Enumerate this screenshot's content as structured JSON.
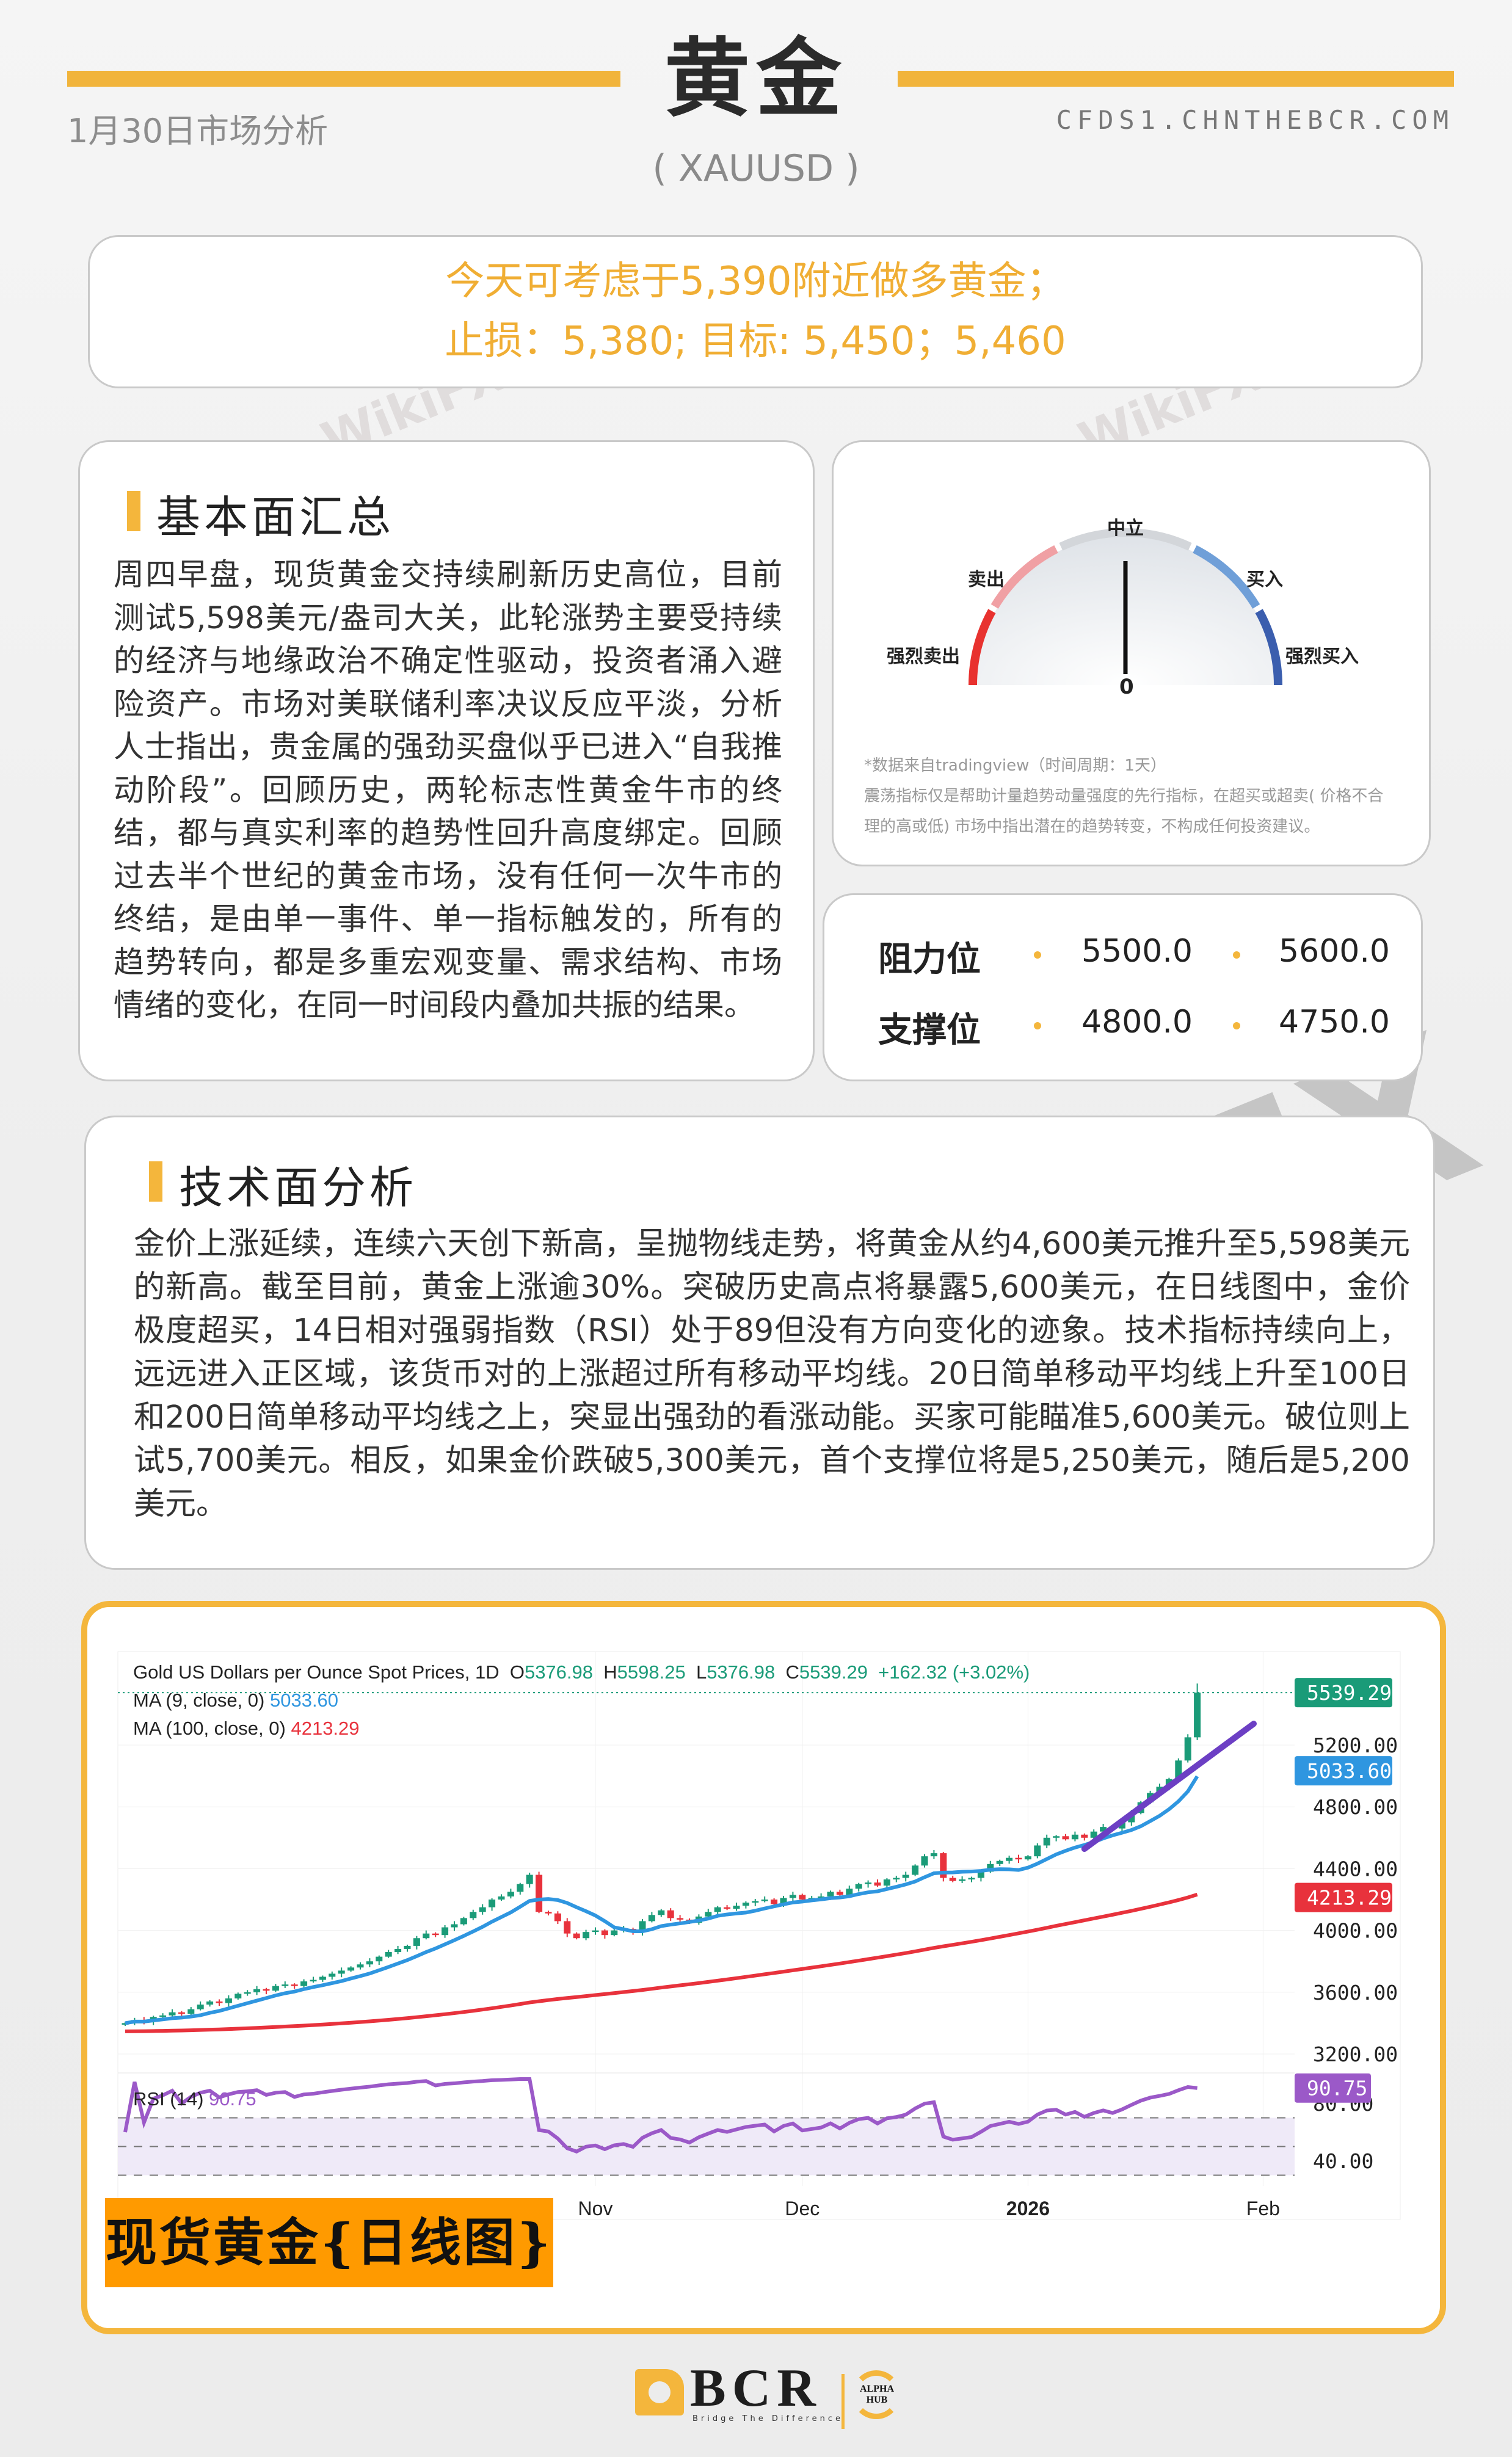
{
  "header": {
    "title": "黄金",
    "symbol": "( XAUUSD )",
    "date_label": "1月30日市场分析",
    "site": "CFDS1.CHNTHEBCR.COM",
    "accent_color": "#f1b43c"
  },
  "advice": {
    "line1": "今天可考虑于5,390附近做多黄金；",
    "line2": "止损：5,380;  目标: 5,450；5,460"
  },
  "fundamentals": {
    "heading": "基本面汇总",
    "body": "周四早盘，现货黄金交持续刷新历史高位，目前测试5,598美元/盎司大关，此轮涨势主要受持续的经济与地缘政治不确定性驱动，投资者涌入避险资产。市场对美联储利率决议反应平淡，分析人士指出，贵金属的强劲买盘似乎已进入“自我推动阶段”。回顾历史，两轮标志性黄金牛市的终结，都与真实利率的趋势性回升高度绑定。回顾过去半个世纪的黄金市场，没有任何一次牛市的终结，是由单一事件、单一指标触发的，所有的趋势转向，都是多重宏观变量、需求结构、市场情绪的变化，在同一时间段内叠加共振的结果。"
  },
  "gauge": {
    "labels": {
      "strong_sell": "强烈卖出",
      "sell": "卖出",
      "neutral": "中立",
      "buy": "买入",
      "strong_buy": "强烈买入"
    },
    "value": "0",
    "needle": "neutral",
    "colors": {
      "strong_sell": "#e8322f",
      "sell": "#f0a0a4",
      "neutral": "#d3d6da",
      "buy": "#6f9fd8",
      "strong_buy": "#3b5eae"
    },
    "source_note": "*数据来自tradingview（时间周期：1天）",
    "disclaimer_1": "震荡指标仅是帮助计量趋势动量强度的先行指标，在超买或超卖( 价格不合",
    "disclaimer_2": "理的高或低) 市场中指出潜在的趋势转变，不构成任何投资建议。"
  },
  "levels": {
    "resistance_label": "阻力位",
    "resistance": [
      "5500.0",
      "5600.0"
    ],
    "support_label": "支撑位",
    "support": [
      "4800.0",
      "4750.0"
    ]
  },
  "technical": {
    "heading": "技术面分析",
    "body": "金价上涨延续，连续六天创下新高，呈抛物线走势，将黄金从约4,600美元推升至5,598美元的新高。截至目前，黄金上涨逾30%。突破历史高点将暴露5,600美元，在日线图中，金价极度超买，14日相对强弱指数（RSI）处于89但没有方向变化的迹象。技术指标持续向上，远远进入正区域，该货币对的上涨超过所有移动平均线。20日简单移动平均线上升至100日和200日简单移动平均线之上，突显出强劲的看涨动能。买家可能瞄准5,600美元。破位则上试5,700美元。相反，如果金价跌破5,300美元，首个支撑位将是5,250美元，随后是5,200美元。"
  },
  "chart_label": "现货黄金{日线图}",
  "chart_data": {
    "type": "candlestick",
    "title": "Gold US Dollars per Ounce Spot Prices, 1D",
    "ohlc_last": {
      "o_label": "O",
      "o": "5376.98",
      "h_label": "H",
      "h": "5598.25",
      "l_label": "L",
      "l": "5376.98",
      "c_label": "C",
      "c": "5539.29",
      "change": "+162.32 (+3.02%)"
    },
    "ma9": {
      "label": "MA (9, close, 0)",
      "value": "5033.60",
      "color": "#2f96e0"
    },
    "ma100": {
      "label": "MA (100, close, 0)",
      "value": "4213.29",
      "color": "#e8323c"
    },
    "rsi": {
      "label": "RSI (14)",
      "value": "90.75",
      "color": "#9b59c8",
      "levels": [
        70,
        50,
        30
      ],
      "ticks": [
        "80.00",
        "40.00"
      ],
      "ylim": [
        20,
        100
      ]
    },
    "last_price_tag": "5539.29",
    "ma9_tag": "5033.60",
    "ma100_tag": "4213.29",
    "rsi_tag": "90.75",
    "up_color": "#1a9b78",
    "down_color": "#e8323c",
    "y_ticks": [
      "5200.00",
      "4800.00",
      "4400.00",
      "4000.00",
      "3600.00",
      "3200.00"
    ],
    "ylim": [
      3150,
      5700
    ],
    "x_ticks": [
      {
        "label": "Nov",
        "index": 50,
        "bold": false
      },
      {
        "label": "Dec",
        "index": 72,
        "bold": false
      },
      {
        "label": "2026",
        "index": 96,
        "bold": true
      },
      {
        "label": "Feb",
        "index": 121,
        "bold": false
      }
    ],
    "ma100_start": 3346,
    "close": [
      3400,
      3420,
      3410,
      3440,
      3450,
      3470,
      3460,
      3490,
      3520,
      3540,
      3530,
      3560,
      3590,
      3600,
      3620,
      3610,
      3640,
      3650,
      3640,
      3670,
      3680,
      3700,
      3720,
      3740,
      3760,
      3780,
      3800,
      3830,
      3860,
      3880,
      3900,
      3950,
      3980,
      3970,
      4020,
      4040,
      4080,
      4120,
      4150,
      4200,
      4220,
      4250,
      4300,
      4360,
      4120,
      4110,
      4060,
      3980,
      3950,
      3990,
      4000,
      3970,
      4000,
      4010,
      3990,
      4060,
      4100,
      4130,
      4080,
      4070,
      4050,
      4090,
      4120,
      4150,
      4140,
      4160,
      4180,
      4190,
      4200,
      4170,
      4210,
      4230,
      4200,
      4210,
      4220,
      4250,
      4230,
      4270,
      4300,
      4310,
      4290,
      4330,
      4340,
      4360,
      4420,
      4480,
      4500,
      4340,
      4320,
      4330,
      4340,
      4380,
      4430,
      4450,
      4470,
      4460,
      4480,
      4550,
      4600,
      4610,
      4590,
      4620,
      4600,
      4640,
      4670,
      4660,
      4700,
      4760,
      4830,
      4890,
      4930,
      4980,
      5100,
      5250,
      5539.29
    ],
    "trendline": {
      "from_index": 102,
      "from_value": 4528,
      "to_index": 120,
      "to_value": 5338,
      "color": "#6c3fc4"
    }
  },
  "footer": {
    "brand": "BCR",
    "tagline": "Bridge The Difference",
    "partner": "ALPHA HUB"
  },
  "watermark": "WikiFX"
}
